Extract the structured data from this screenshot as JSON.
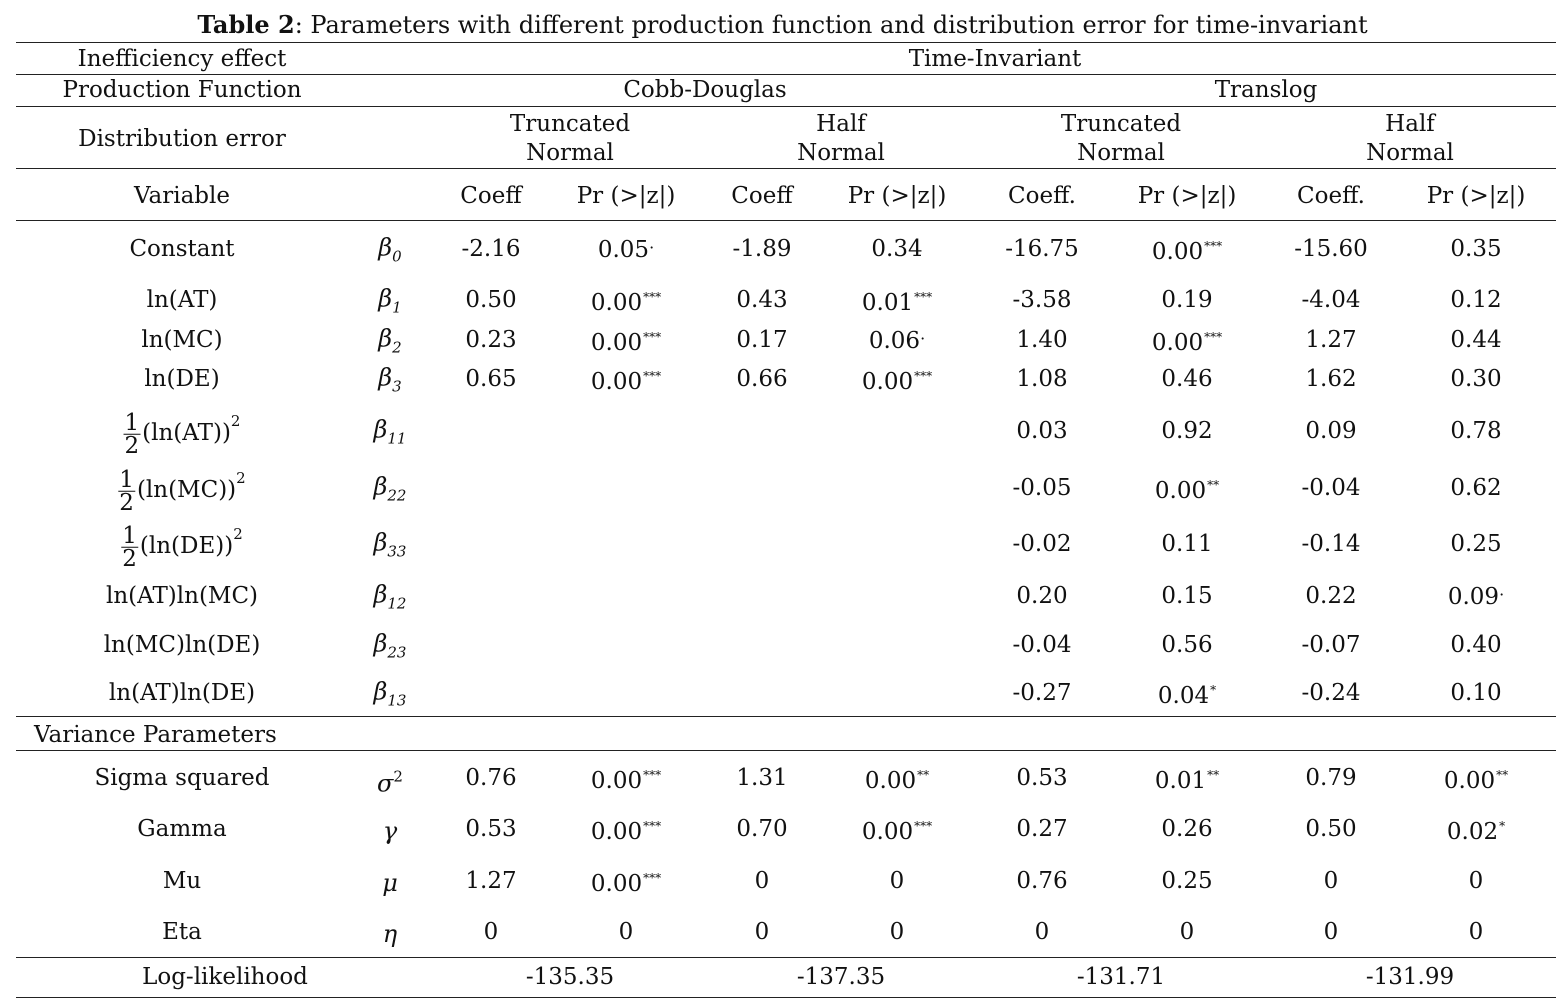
{
  "title": {
    "bold": "Table 2",
    "rest": ": Parameters with different production function and distribution error for time-invariant"
  },
  "header": {
    "inefficiency_label": "Inefficiency effect",
    "inefficiency_value": "Time-Invariant",
    "production_label": "Production  Function",
    "cobb_douglas": "Cobb-Douglas",
    "translog": "Translog",
    "distribution_label": "Distribution error",
    "truncated_1": "Truncated",
    "normal_1": "Normal",
    "half_1": "Half",
    "normal_2": "Normal",
    "truncated_2": "Truncated",
    "normal_3": "Normal",
    "half_2": "Half",
    "normal_4": "Normal",
    "variable_label": "Variable",
    "col_headers": [
      "Coeff",
      "Pr (>|z|)",
      "Coeff",
      "Pr (>|z|)",
      "Coeff.",
      "Pr (>|z|)",
      "Coeff.",
      "Pr (>|z|)"
    ]
  },
  "rows": [
    {
      "name": "Constant",
      "sym": "β",
      "sub": "0",
      "vals": [
        "-2.16",
        "0.05",
        "-1.89",
        "0.34",
        "-16.75",
        "0.00",
        "-15.60",
        "0.35"
      ],
      "sig": [
        "",
        "·",
        "",
        "",
        "",
        "***",
        "",
        ""
      ]
    },
    {
      "name": "ln(AT)",
      "sym": "β",
      "sub": "1",
      "vals": [
        "0.50",
        "0.00",
        "0.43",
        "0.01",
        "-3.58",
        "0.19",
        "-4.04",
        "0.12"
      ],
      "sig": [
        "",
        "***",
        "",
        "***",
        "",
        "",
        "",
        ""
      ]
    },
    {
      "name": "ln(MC)",
      "sym": "β",
      "sub": "2",
      "vals": [
        "0.23",
        "0.00",
        "0.17",
        "0.06",
        "1.40",
        "0.00",
        "1.27",
        "0.44"
      ],
      "sig": [
        "",
        "***",
        "",
        "·",
        "",
        "***",
        "",
        ""
      ]
    },
    {
      "name": "ln(DE)",
      "sym": "β",
      "sub": "3",
      "vals": [
        "0.65",
        "0.00",
        "0.66",
        "0.00",
        "1.08",
        "0.46",
        "1.62",
        "0.30"
      ],
      "sig": [
        "",
        "***",
        "",
        "***",
        "",
        "",
        "",
        ""
      ]
    },
    {
      "frac": true,
      "name": "(ln(AT))",
      "sym": "β",
      "sub": "11",
      "vals": [
        "",
        "",
        "",
        "",
        "0.03",
        "0.92",
        "0.09",
        "0.78"
      ],
      "sig": [
        "",
        "",
        "",
        "",
        "",
        "",
        "",
        ""
      ]
    },
    {
      "frac": true,
      "name": "(ln(MC))",
      "sym": "β",
      "sub": "22",
      "vals": [
        "",
        "",
        "",
        "",
        "-0.05",
        "0.00",
        "-0.04",
        "0.62"
      ],
      "sig": [
        "",
        "",
        "",
        "",
        "",
        "**",
        "",
        ""
      ]
    },
    {
      "frac": true,
      "name": "(ln(DE))",
      "sym": "β",
      "sub": "33",
      "vals": [
        "",
        "",
        "",
        "",
        "-0.02",
        "0.11",
        "-0.14",
        "0.25"
      ],
      "sig": [
        "",
        "",
        "",
        "",
        "",
        "",
        "",
        ""
      ]
    },
    {
      "name": "ln(AT)ln(MC)",
      "sym": "β",
      "sub": "12",
      "vals": [
        "",
        "",
        "",
        "",
        "0.20",
        "0.15",
        "0.22",
        "0.09"
      ],
      "sig": [
        "",
        "",
        "",
        "",
        "",
        "",
        "",
        "·"
      ]
    },
    {
      "name": "ln(MC)ln(DE)",
      "sym": "β",
      "sub": "23",
      "vals": [
        "",
        "",
        "",
        "",
        "-0.04",
        "0.56",
        "-0.07",
        "0.40"
      ],
      "sig": [
        "",
        "",
        "",
        "",
        "",
        "",
        "",
        ""
      ]
    },
    {
      "name": "ln(AT)ln(DE)",
      "sym": "β",
      "sub": "13",
      "vals": [
        "",
        "",
        "",
        "",
        "-0.27",
        "0.04",
        "-0.24",
        "0.10"
      ],
      "sig": [
        "",
        "",
        "",
        "",
        "",
        "*",
        "",
        ""
      ]
    }
  ],
  "frac_num": "1",
  "frac_den": "2",
  "frac_pow": "2",
  "variance_label": "Variance Parameters",
  "variance_rows": [
    {
      "name": "Sigma squared",
      "sym": "σ",
      "supsym": "2",
      "vals": [
        "0.76",
        "0.00",
        "1.31",
        "0.00",
        "0.53",
        "0.01",
        "0.79",
        "0.00"
      ],
      "sig": [
        "",
        "***",
        "",
        "**",
        "",
        "**",
        "",
        "**"
      ]
    },
    {
      "name": "Gamma",
      "sym": "γ",
      "vals": [
        "0.53",
        "0.00",
        "0.70",
        "0.00",
        "0.27",
        "0.26",
        "0.50",
        "0.02"
      ],
      "sig": [
        "",
        "***",
        "",
        "***",
        "",
        "",
        "",
        "*"
      ]
    },
    {
      "name": "Mu",
      "sym": "μ",
      "vals": [
        "1.27",
        "0.00",
        "0",
        "0",
        "0.76",
        "0.25",
        "0",
        "0"
      ],
      "sig": [
        "",
        "***",
        "",
        "",
        "",
        "",
        "",
        ""
      ]
    },
    {
      "name": "Eta",
      "sym": "η",
      "vals": [
        "0",
        "0",
        "0",
        "0",
        "0",
        "0",
        "0",
        "0"
      ],
      "sig": [
        "",
        "",
        "",
        "",
        "",
        "",
        "",
        ""
      ]
    }
  ],
  "loglik": {
    "label": "Log-likelihood",
    "vals": [
      "-135.35",
      "-137.35",
      "-131.71",
      "-131.99"
    ]
  }
}
